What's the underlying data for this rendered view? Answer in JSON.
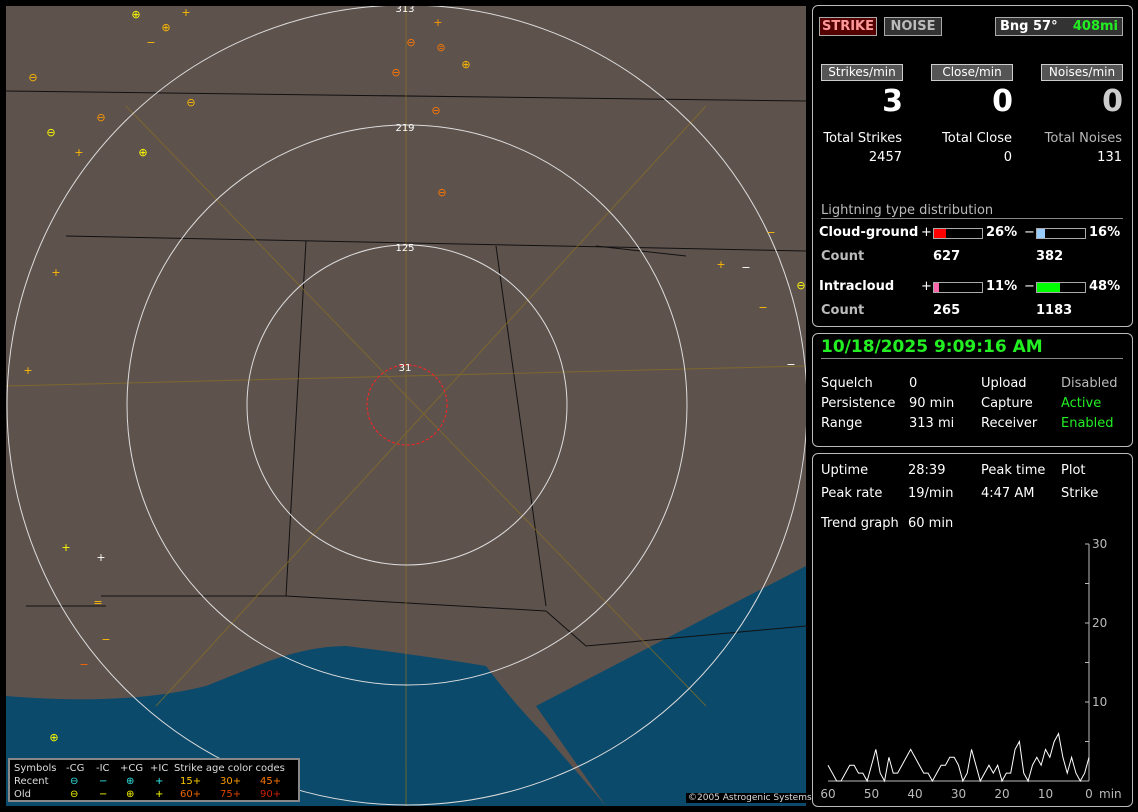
{
  "map": {
    "ring_labels": [
      "313",
      "219",
      "125",
      "31"
    ],
    "copyright": "©2005 Astrogenic Systems"
  },
  "legend": {
    "symbols": "Symbols",
    "neg_cg": "-CG",
    "neg_ic": "-IC",
    "pos_cg": "+CG",
    "pos_ic": "+IC",
    "recent": "Recent",
    "old": "Old",
    "age_title": "Strike age color codes",
    "ages_recent": [
      "15+",
      "30+",
      "45+"
    ],
    "ages_old": [
      "60+",
      "75+",
      "90+"
    ],
    "age_colors": [
      "#ffcc00",
      "#ff9900",
      "#ff7700",
      "#ee6600",
      "#dd4400",
      "#cc2200"
    ]
  },
  "header": {
    "strike": "STRIKE",
    "noise": "NOISE",
    "bearing": "Bng 57°",
    "distance": "408mi"
  },
  "rates": [
    {
      "label": "Strikes/min",
      "value": "3",
      "total_label": "Total Strikes",
      "total": "2457"
    },
    {
      "label": "Close/min",
      "value": "0",
      "total_label": "Total Close",
      "total": "0"
    },
    {
      "label": "Noises/min",
      "value": "0",
      "total_label": "Total Noises",
      "total": "131"
    }
  ],
  "distribution": {
    "title": "Lightning type distribution",
    "cg_label": "Cloud-ground",
    "ic_label": "Intracloud",
    "count_label": "Count",
    "plus": "+",
    "minus": "−",
    "cg_pos": {
      "pct": "26%",
      "value": 26,
      "count": "627",
      "color": "#ff0000"
    },
    "cg_neg": {
      "pct": "16%",
      "value": 16,
      "count": "382",
      "color": "#99ccff"
    },
    "ic_pos": {
      "pct": "11%",
      "value": 11,
      "count": "265",
      "color": "#ff66aa"
    },
    "ic_neg": {
      "pct": "48%",
      "value": 48,
      "count": "1183",
      "color": "#00ff00"
    }
  },
  "status": {
    "datetime": "10/18/2025 9:09:16 AM",
    "rows": [
      [
        "Squelch",
        "0",
        "Upload",
        "Disabled"
      ],
      [
        "Persistence",
        "90 min",
        "Capture",
        "Active"
      ],
      [
        "Range",
        "313 mi",
        "Receiver",
        "Enabled"
      ]
    ]
  },
  "stats": {
    "uptime_label": "Uptime",
    "uptime": "28:39",
    "peak_time_label": "Peak time",
    "plot_label": "Plot",
    "peak_rate_label": "Peak rate",
    "peak_rate": "19/min",
    "peak_time": "4:47 AM",
    "plot": "Strike",
    "trend_label": "Trend graph",
    "trend": "60 min"
  },
  "chart_data": {
    "type": "line",
    "xlabel": "min",
    "x_ticks": [
      "60",
      "50",
      "40",
      "30",
      "20",
      "10",
      "0"
    ],
    "y_ticks": [
      "10",
      "20",
      "30"
    ],
    "xlim": [
      60,
      0
    ],
    "ylim": [
      0,
      30
    ],
    "series": [
      {
        "color": "#ffffff",
        "values": [
          2,
          1,
          0,
          0,
          1,
          2,
          2,
          1,
          1,
          0,
          2,
          4,
          1,
          0,
          3,
          1,
          1,
          2,
          3,
          4,
          3,
          2,
          1,
          1,
          0,
          1,
          2,
          2,
          3,
          3,
          2,
          0,
          1,
          4,
          2,
          0,
          1,
          2,
          1,
          2,
          0,
          1,
          1,
          4,
          5,
          1,
          0,
          2,
          3,
          2,
          4,
          3,
          5,
          6,
          3,
          1,
          3,
          1,
          0,
          1,
          3
        ]
      }
    ]
  }
}
